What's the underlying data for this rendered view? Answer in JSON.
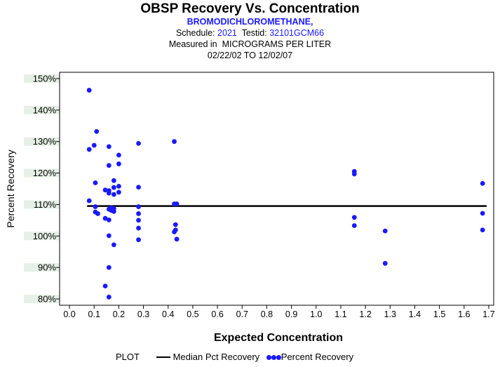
{
  "header": {
    "title": "OBSP Recovery Vs. Concentration",
    "compound": "BROMODICHLOROMETHANE,",
    "schedule_label": "Schedule:",
    "schedule_value": "2021",
    "testid_label": "Testid:",
    "testid_value": "32101GCM66",
    "measured": "Measured in  MICROGRAMS PER LITER",
    "date_range": "02/22/02 TO 12/02/07"
  },
  "legend": {
    "title": "PLOT",
    "median_label": "Median Pct Recovery",
    "points_label": "Percent Recovery"
  },
  "colors": {
    "points": "#1a1aff",
    "median": "#000000",
    "tick_band": "#e6f0e6"
  },
  "chart_data": {
    "type": "scatter",
    "xlabel": "Expected Concentration",
    "ylabel": "Percent Recovery",
    "xlim": [
      -0.04,
      1.72
    ],
    "ylim": [
      78,
      152
    ],
    "x_ticks": [
      0.0,
      0.1,
      0.2,
      0.3,
      0.4,
      0.5,
      0.6,
      0.7,
      0.8,
      0.9,
      1.0,
      1.1,
      1.2,
      1.3,
      1.4,
      1.5,
      1.6,
      1.7
    ],
    "x_tick_labels": [
      "0.0",
      "0.1",
      "0.2",
      "0.3",
      "0.4",
      "0.5",
      "0.6",
      "0.7",
      "0.8",
      "0.9",
      "1.0",
      "1.1",
      "1.2",
      "1.3",
      "1.4",
      "1.5",
      "1.6",
      "1.7"
    ],
    "y_ticks": [
      80,
      90,
      100,
      110,
      120,
      130,
      140,
      150
    ],
    "y_tick_labels": [
      "80%",
      "90%",
      "100%",
      "110%",
      "120%",
      "130%",
      "140%",
      "150%"
    ],
    "median": 109.5,
    "series": [
      {
        "name": "Percent Recovery",
        "points": [
          {
            "x": 0.08,
            "y": 146.3
          },
          {
            "x": 0.08,
            "y": 127.5
          },
          {
            "x": 0.08,
            "y": 111.2
          },
          {
            "x": 0.1,
            "y": 128.8
          },
          {
            "x": 0.11,
            "y": 133.2
          },
          {
            "x": 0.105,
            "y": 116.9
          },
          {
            "x": 0.105,
            "y": 109.3
          },
          {
            "x": 0.105,
            "y": 107.6
          },
          {
            "x": 0.115,
            "y": 107.1
          },
          {
            "x": 0.145,
            "y": 114.6
          },
          {
            "x": 0.145,
            "y": 105.6
          },
          {
            "x": 0.145,
            "y": 84.1
          },
          {
            "x": 0.16,
            "y": 128.4
          },
          {
            "x": 0.16,
            "y": 122.4
          },
          {
            "x": 0.16,
            "y": 114.4
          },
          {
            "x": 0.16,
            "y": 113.6
          },
          {
            "x": 0.16,
            "y": 108.5
          },
          {
            "x": 0.16,
            "y": 105.1
          },
          {
            "x": 0.16,
            "y": 100.1
          },
          {
            "x": 0.16,
            "y": 90.0
          },
          {
            "x": 0.16,
            "y": 80.6
          },
          {
            "x": 0.17,
            "y": 109.0
          },
          {
            "x": 0.17,
            "y": 108.1
          },
          {
            "x": 0.18,
            "y": 117.6
          },
          {
            "x": 0.18,
            "y": 115.4
          },
          {
            "x": 0.18,
            "y": 113.2
          },
          {
            "x": 0.18,
            "y": 108.7
          },
          {
            "x": 0.18,
            "y": 107.8
          },
          {
            "x": 0.18,
            "y": 97.2
          },
          {
            "x": 0.2,
            "y": 125.7
          },
          {
            "x": 0.2,
            "y": 122.9
          },
          {
            "x": 0.2,
            "y": 115.8
          },
          {
            "x": 0.2,
            "y": 113.9
          },
          {
            "x": 0.28,
            "y": 129.4
          },
          {
            "x": 0.28,
            "y": 115.5
          },
          {
            "x": 0.28,
            "y": 109.3
          },
          {
            "x": 0.28,
            "y": 107.1
          },
          {
            "x": 0.28,
            "y": 105.0
          },
          {
            "x": 0.28,
            "y": 102.5
          },
          {
            "x": 0.28,
            "y": 98.8
          },
          {
            "x": 0.425,
            "y": 130.0
          },
          {
            "x": 0.425,
            "y": 110.2
          },
          {
            "x": 0.435,
            "y": 110.2
          },
          {
            "x": 0.43,
            "y": 103.6
          },
          {
            "x": 0.43,
            "y": 101.9
          },
          {
            "x": 0.425,
            "y": 101.3
          },
          {
            "x": 0.435,
            "y": 99.0
          },
          {
            "x": 1.155,
            "y": 120.5
          },
          {
            "x": 1.155,
            "y": 119.7
          },
          {
            "x": 1.155,
            "y": 105.9
          },
          {
            "x": 1.155,
            "y": 103.3
          },
          {
            "x": 1.28,
            "y": 101.6
          },
          {
            "x": 1.28,
            "y": 91.3
          },
          {
            "x": 1.675,
            "y": 116.7
          },
          {
            "x": 1.675,
            "y": 107.2
          },
          {
            "x": 1.675,
            "y": 101.9
          }
        ]
      }
    ]
  }
}
